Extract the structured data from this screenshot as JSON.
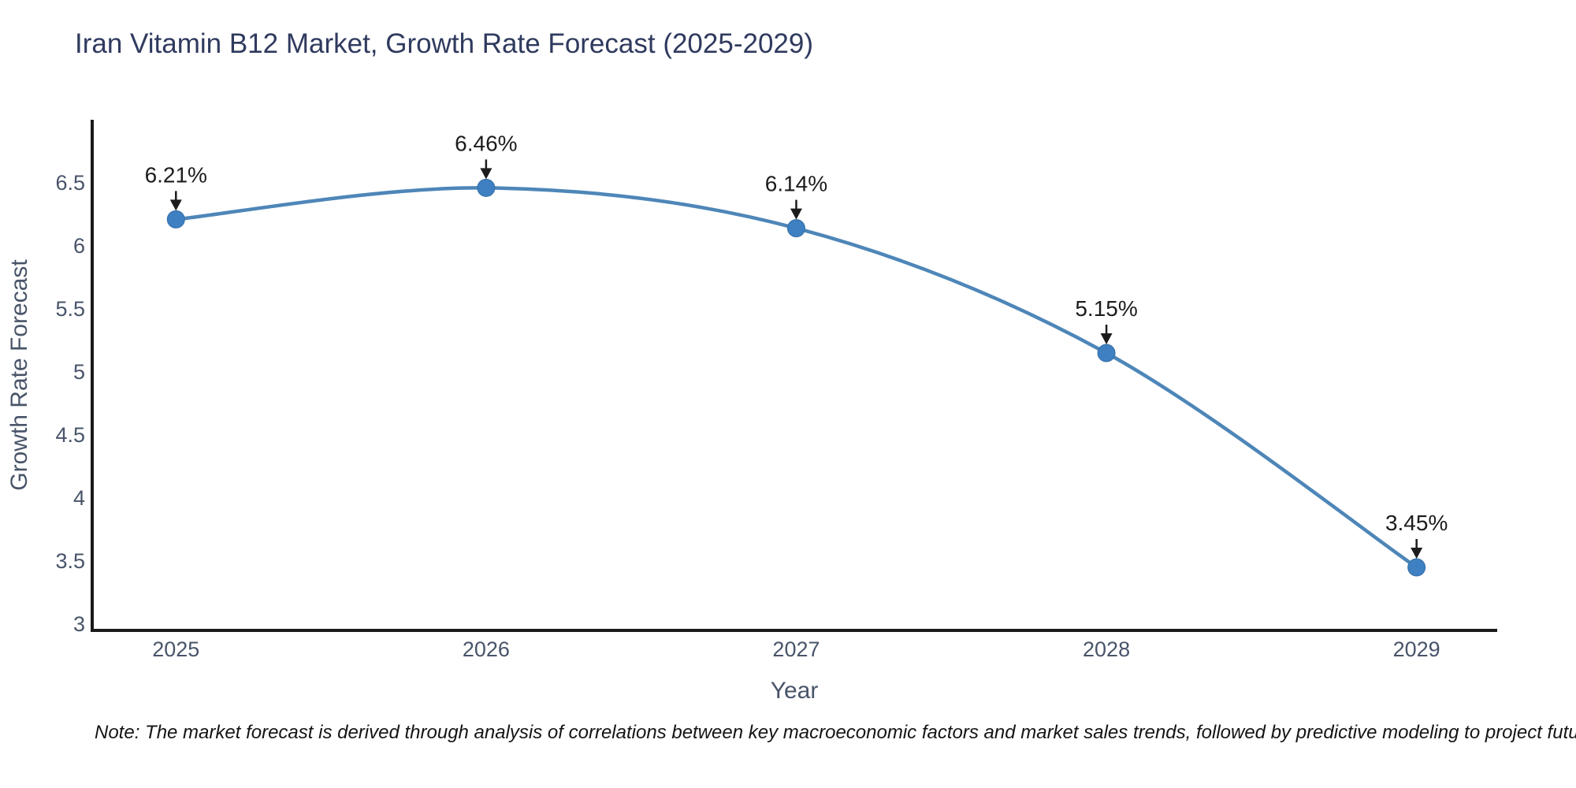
{
  "chart_data": {
    "type": "line",
    "title": "Iran Vitamin B12 Market, Growth Rate Forecast (2025-2029)",
    "xlabel": "Year",
    "ylabel": "Growth Rate Forecast",
    "x": [
      2025,
      2026,
      2027,
      2028,
      2029
    ],
    "series": [
      {
        "name": "Growth Rate Forecast",
        "values": [
          6.21,
          6.46,
          6.14,
          5.15,
          3.45
        ]
      }
    ],
    "point_labels": [
      "6.21%",
      "6.46%",
      "6.14%",
      "5.15%",
      "3.45%"
    ],
    "x_tick_labels": [
      "2025",
      "2026",
      "2027",
      "2028",
      "2029"
    ],
    "y_tick_values": [
      3,
      3.5,
      4,
      4.5,
      5,
      5.5,
      6,
      6.5
    ],
    "y_tick_labels": [
      "3",
      "3.5",
      "4",
      "4.5",
      "5",
      "5.5",
      "6",
      "6.5"
    ],
    "x_range": [
      2024.73,
      2029.26
    ],
    "y_range": [
      2.95,
      7.0
    ],
    "grid": false,
    "legend": "none",
    "line_shape": "spline",
    "annotations_have_arrows": true
  },
  "note": {
    "text": "Note: The market forecast is derived through analysis of correlations between key macroeconomic factors and market sales trends, followed by predictive modeling to project future sales"
  },
  "colors": {
    "background": "#ffffff",
    "title": "#2f3a5e",
    "axis_text": "#485469",
    "axis_line": "#1a1a1a",
    "series_line": "#4e86b8",
    "marker_fill": "#3e80c1",
    "marker_edge": "#346da6",
    "annotation": "#1c1c1c",
    "note_text": "#141414"
  }
}
